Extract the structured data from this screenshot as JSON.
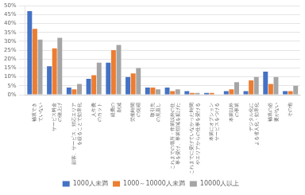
{
  "chart_data": {
    "type": "bar",
    "categories": [
      "補填でき\nていない",
      "サービス料金\nの値上げ",
      "顧客、サービス、対応エリア\nを絞ることで効率化",
      "人件費\nのカット",
      "経費の\n削減",
      "労働時間\nの短縮",
      "取引先\nの見直し",
      "これまでの場所・作業以外の仕\n事を受け、事業領域を拡げた",
      "これまでに受けていなかった時間\nやエリアからの仕事を受ける",
      "本業にオプション\nサービスをつける",
      "本業以外\nの事業",
      "デジタル化に\nよる省人化・効率化",
      "補填の必\n要がない",
      "その他"
    ],
    "series": [
      {
        "name": "1000人未満",
        "color": "#4472c4",
        "values": [
          47,
          16,
          4,
          9,
          18,
          10,
          4,
          4,
          2,
          1,
          2,
          2,
          13,
          2
        ]
      },
      {
        "name": "1000～10000人未満",
        "color": "#ed7d31",
        "values": [
          37,
          26,
          3,
          11,
          25,
          12,
          4,
          2,
          1,
          1,
          3,
          8,
          6,
          2
        ]
      },
      {
        "name": "10000人以上",
        "color": "#a5a5a5",
        "values": [
          31,
          32,
          6,
          18,
          28,
          15,
          3,
          3,
          1,
          0,
          7,
          10,
          10,
          5
        ]
      }
    ],
    "ylim": [
      0,
      50
    ],
    "yticks": [
      {
        "value": 0,
        "label": "0%"
      },
      {
        "value": 5,
        "label": "5%"
      },
      {
        "value": 10,
        "label": "10%"
      },
      {
        "value": 15,
        "label": "15%"
      },
      {
        "value": 20,
        "label": "20%"
      },
      {
        "value": 25,
        "label": "25%"
      },
      {
        "value": 30,
        "label": "30%"
      },
      {
        "value": 35,
        "label": "35%"
      },
      {
        "value": 40,
        "label": "40%"
      },
      {
        "value": 45,
        "label": "45%"
      },
      {
        "value": 50,
        "label": "50%"
      }
    ],
    "grid": true,
    "legend": "bottom"
  }
}
